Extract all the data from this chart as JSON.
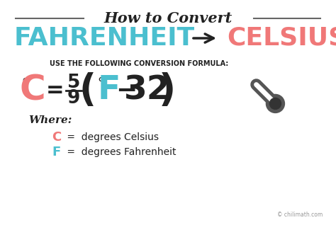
{
  "bg_color": "#ffffff",
  "border_color": "#888888",
  "title_text": "How to Convert",
  "fahrenheit_text": "FAHRENHEIT",
  "celsius_text": "CELSIUS",
  "fahrenheit_color": "#4bbfcf",
  "celsius_color": "#f07878",
  "formula_label": "USE THE FOLLOWING CONVERSION FORMULA:",
  "where_label": "Where:",
  "c_def": " =  degrees Celsius",
  "f_def": " =  degrees Fahrenheit",
  "watermark": "© chilimath.com",
  "dark_color": "#222222",
  "thermometer_color": "#555555",
  "line_color": "#666666"
}
